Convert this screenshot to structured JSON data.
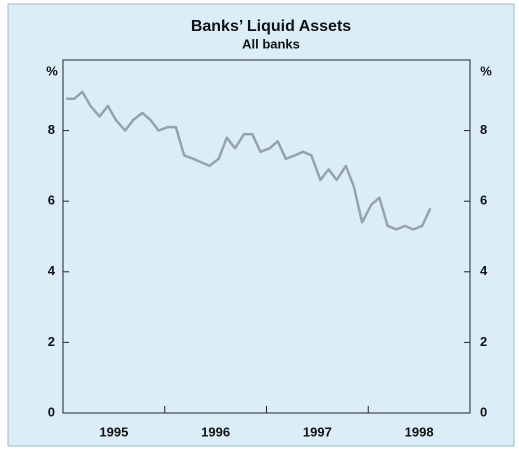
{
  "chart_data": {
    "type": "line",
    "title": "Banks’ Liquid Assets",
    "subtitle": "All banks",
    "y_unit_left": "%",
    "y_unit_right": "%",
    "x": [
      1995.03,
      1995.11,
      1995.19,
      1995.27,
      1995.36,
      1995.44,
      1995.52,
      1995.61,
      1995.69,
      1995.78,
      1995.86,
      1995.94,
      1996.03,
      1996.11,
      1996.19,
      1996.28,
      1996.36,
      1996.44,
      1996.53,
      1996.61,
      1996.69,
      1996.78,
      1996.86,
      1996.94,
      1997.03,
      1997.11,
      1997.19,
      1997.28,
      1997.36,
      1997.44,
      1997.53,
      1997.61,
      1997.69,
      1997.78,
      1997.86,
      1997.94,
      1998.03,
      1998.11,
      1998.19,
      1998.28,
      1998.36,
      1998.44,
      1998.53,
      1998.61
    ],
    "series": [
      {
        "name": "Liquid assets",
        "color": "#98a3a9",
        "values": [
          8.9,
          8.9,
          9.1,
          8.7,
          8.4,
          8.7,
          8.3,
          8.0,
          8.3,
          8.5,
          8.3,
          8.0,
          8.1,
          8.1,
          7.3,
          7.2,
          7.1,
          7.0,
          7.2,
          7.8,
          7.5,
          7.9,
          7.9,
          7.4,
          7.5,
          7.7,
          7.2,
          7.3,
          7.4,
          7.3,
          6.6,
          6.9,
          6.6,
          7.0,
          6.4,
          5.4,
          5.9,
          6.1,
          5.3,
          5.2,
          5.3,
          5.2,
          5.3,
          5.8
        ]
      }
    ],
    "xlim": [
      1995,
      1999
    ],
    "xticks": [
      {
        "value": 1995.5,
        "label": "1995"
      },
      {
        "value": 1996.5,
        "label": "1996"
      },
      {
        "value": 1997.5,
        "label": "1997"
      },
      {
        "value": 1998.5,
        "label": "1998"
      }
    ],
    "ylim": [
      0,
      10
    ],
    "yticks": [
      0,
      2,
      4,
      6,
      8
    ]
  }
}
